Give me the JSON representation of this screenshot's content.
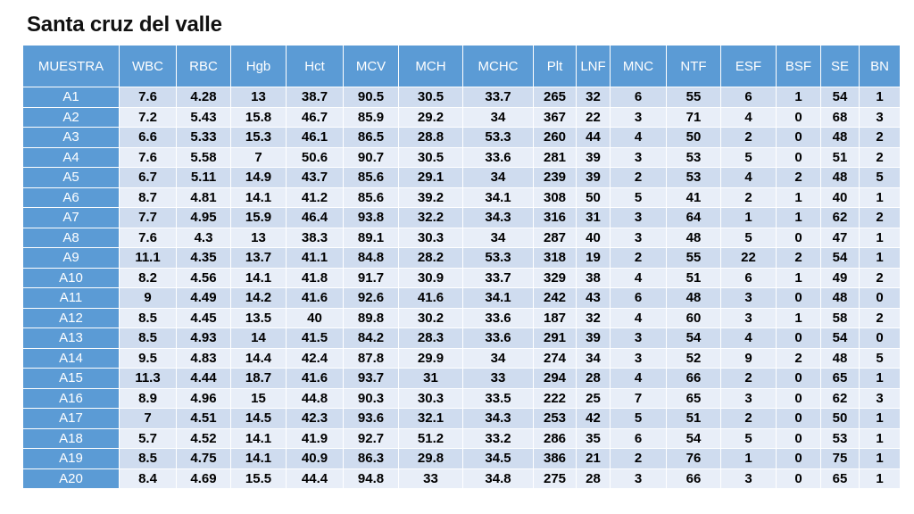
{
  "title": "Santa cruz del valle",
  "table": {
    "headers": [
      "MUESTRA",
      "WBC",
      "RBC",
      "Hgb",
      "Hct",
      "MCV",
      "MCH",
      "MCHC",
      "Plt",
      "LNF",
      "MNC",
      "NTF",
      "ESF",
      "BSF",
      "SE",
      "BN"
    ],
    "rows": [
      [
        "A1",
        "7.6",
        "4.28",
        "13",
        "38.7",
        "90.5",
        "30.5",
        "33.7",
        "265",
        "32",
        "6",
        "55",
        "6",
        "1",
        "54",
        "1"
      ],
      [
        "A2",
        "7.2",
        "5.43",
        "15.8",
        "46.7",
        "85.9",
        "29.2",
        "34",
        "367",
        "22",
        "3",
        "71",
        "4",
        "0",
        "68",
        "3"
      ],
      [
        "A3",
        "6.6",
        "5.33",
        "15.3",
        "46.1",
        "86.5",
        "28.8",
        "53.3",
        "260",
        "44",
        "4",
        "50",
        "2",
        "0",
        "48",
        "2"
      ],
      [
        "A4",
        "7.6",
        "5.58",
        "7",
        "50.6",
        "90.7",
        "30.5",
        "33.6",
        "281",
        "39",
        "3",
        "53",
        "5",
        "0",
        "51",
        "2"
      ],
      [
        "A5",
        "6.7",
        "5.11",
        "14.9",
        "43.7",
        "85.6",
        "29.1",
        "34",
        "239",
        "39",
        "2",
        "53",
        "4",
        "2",
        "48",
        "5"
      ],
      [
        "A6",
        "8.7",
        "4.81",
        "14.1",
        "41.2",
        "85.6",
        "39.2",
        "34.1",
        "308",
        "50",
        "5",
        "41",
        "2",
        "1",
        "40",
        "1"
      ],
      [
        "A7",
        "7.7",
        "4.95",
        "15.9",
        "46.4",
        "93.8",
        "32.2",
        "34.3",
        "316",
        "31",
        "3",
        "64",
        "1",
        "1",
        "62",
        "2"
      ],
      [
        "A8",
        "7.6",
        "4.3",
        "13",
        "38.3",
        "89.1",
        "30.3",
        "34",
        "287",
        "40",
        "3",
        "48",
        "5",
        "0",
        "47",
        "1"
      ],
      [
        "A9",
        "11.1",
        "4.35",
        "13.7",
        "41.1",
        "84.8",
        "28.2",
        "53.3",
        "318",
        "19",
        "2",
        "55",
        "22",
        "2",
        "54",
        "1"
      ],
      [
        "A10",
        "8.2",
        "4.56",
        "14.1",
        "41.8",
        "91.7",
        "30.9",
        "33.7",
        "329",
        "38",
        "4",
        "51",
        "6",
        "1",
        "49",
        "2"
      ],
      [
        "A11",
        "9",
        "4.49",
        "14.2",
        "41.6",
        "92.6",
        "41.6",
        "34.1",
        "242",
        "43",
        "6",
        "48",
        "3",
        "0",
        "48",
        "0"
      ],
      [
        "A12",
        "8.5",
        "4.45",
        "13.5",
        "40",
        "89.8",
        "30.2",
        "33.6",
        "187",
        "32",
        "4",
        "60",
        "3",
        "1",
        "58",
        "2"
      ],
      [
        "A13",
        "8.5",
        "4.93",
        "14",
        "41.5",
        "84.2",
        "28.3",
        "33.6",
        "291",
        "39",
        "3",
        "54",
        "4",
        "0",
        "54",
        "0"
      ],
      [
        "A14",
        "9.5",
        "4.83",
        "14.4",
        "42.4",
        "87.8",
        "29.9",
        "34",
        "274",
        "34",
        "3",
        "52",
        "9",
        "2",
        "48",
        "5"
      ],
      [
        "A15",
        "11.3",
        "4.44",
        "18.7",
        "41.6",
        "93.7",
        "31",
        "33",
        "294",
        "28",
        "4",
        "66",
        "2",
        "0",
        "65",
        "1"
      ],
      [
        "A16",
        "8.9",
        "4.96",
        "15",
        "44.8",
        "90.3",
        "30.3",
        "33.5",
        "222",
        "25",
        "7",
        "65",
        "3",
        "0",
        "62",
        "3"
      ],
      [
        "A17",
        "7",
        "4.51",
        "14.5",
        "42.3",
        "93.6",
        "32.1",
        "34.3",
        "253",
        "42",
        "5",
        "51",
        "2",
        "0",
        "50",
        "1"
      ],
      [
        "A18",
        "5.7",
        "4.52",
        "14.1",
        "41.9",
        "92.7",
        "51.2",
        "33.2",
        "286",
        "35",
        "6",
        "54",
        "5",
        "0",
        "53",
        "1"
      ],
      [
        "A19",
        "8.5",
        "4.75",
        "14.1",
        "40.9",
        "86.3",
        "29.8",
        "34.5",
        "386",
        "21",
        "2",
        "76",
        "1",
        "0",
        "75",
        "1"
      ],
      [
        "A20",
        "8.4",
        "4.69",
        "15.5",
        "44.4",
        "94.8",
        "33",
        "34.8",
        "275",
        "28",
        "3",
        "66",
        "3",
        "0",
        "65",
        "1"
      ]
    ]
  },
  "colors": {
    "header_bg": "#5b9bd5",
    "row_odd_bg": "#cfdcef",
    "row_even_bg": "#e8eef8",
    "header_text": "#ffffff"
  }
}
